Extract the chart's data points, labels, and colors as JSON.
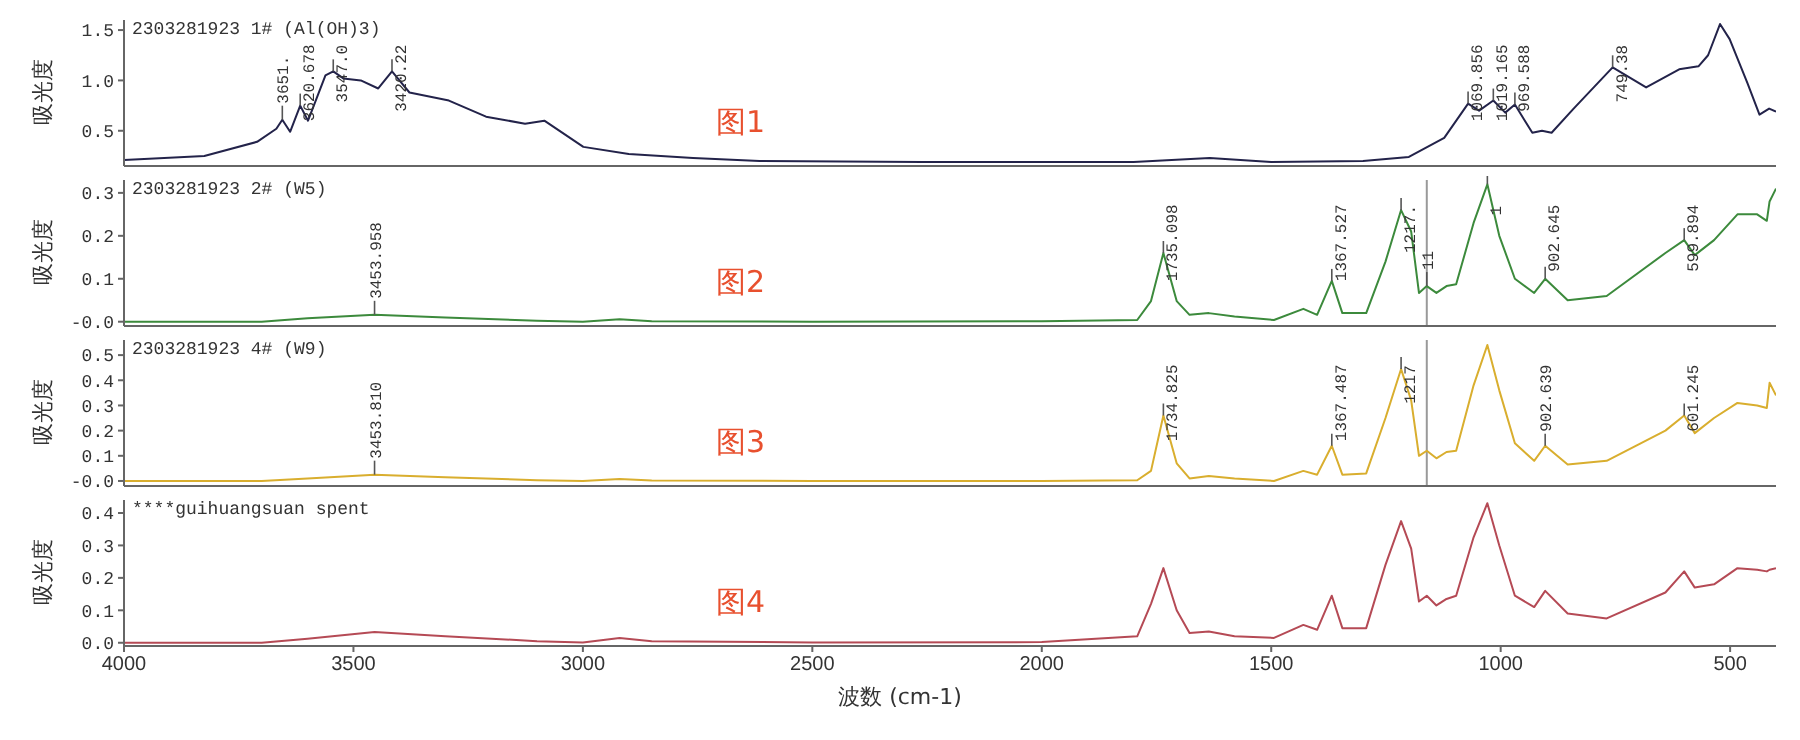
{
  "chart_data": [
    {
      "type": "line",
      "title": "2303281923 1# (Al(OH)3)",
      "ylabel": "吸光度",
      "color": "#23234a",
      "x": [
        4000,
        3825,
        3710,
        3668,
        3655,
        3638,
        3616,
        3599,
        3561,
        3544,
        3522,
        3484,
        3446,
        3416,
        3378,
        3292,
        3211,
        3126,
        3084,
        2999,
        2900,
        2760,
        2615,
        2261,
        2000,
        1800,
        1634,
        1500,
        1300,
        1200,
        1123,
        1071,
        1047,
        1016,
        990,
        969,
        931,
        910,
        889,
        841,
        756,
        683,
        611,
        569,
        548,
        522,
        501,
        462,
        436,
        415,
        400
      ],
      "values": [
        0.21,
        0.25,
        0.39,
        0.52,
        0.61,
        0.49,
        0.75,
        0.6,
        1.05,
        1.09,
        1.02,
        1.0,
        0.92,
        1.09,
        0.88,
        0.8,
        0.64,
        0.57,
        0.6,
        0.34,
        0.27,
        0.23,
        0.2,
        0.19,
        0.19,
        0.19,
        0.23,
        0.19,
        0.2,
        0.24,
        0.43,
        0.77,
        0.7,
        0.8,
        0.68,
        0.76,
        0.48,
        0.5,
        0.48,
        0.72,
        1.13,
        0.93,
        1.11,
        1.14,
        1.25,
        1.56,
        1.41,
        0.97,
        0.66,
        0.72,
        0.69
      ],
      "xlim": [
        4000,
        400
      ],
      "xticks": [
        4000,
        3500,
        3000,
        2500,
        2000,
        1500,
        1000,
        500
      ],
      "ylim": [
        0.15,
        1.6
      ],
      "yticks": [
        {
          "value": 0.5,
          "label": "0.5"
        },
        {
          "value": 1,
          "label": "1.0"
        },
        {
          "value": 1.5,
          "label": "1.5"
        }
      ],
      "tick_labels": "y",
      "grid": false,
      "legend": false,
      "marker": "none",
      "line_style": "solid",
      "annotations": [
        "图1",
        {
          "text": "3651.",
          "x": 3655,
          "y": 0.61
        },
        {
          "text": "3620.678",
          "x": 3616,
          "y": 0.75
        },
        {
          "text": "3547.0",
          "x": 3544,
          "y": 1.09
        },
        {
          "text": "3420.22",
          "x": 3416,
          "y": 1.09
        },
        {
          "text": "1069.856",
          "x": 1071,
          "y": 0.77
        },
        {
          "text": "1019.165",
          "x": 1016,
          "y": 0.8
        },
        {
          "text": "969.588",
          "x": 969,
          "y": 0.76
        },
        {
          "text": "749.38",
          "x": 756,
          "y": 1.13
        }
      ]
    },
    {
      "type": "line",
      "title": "2303281923 2# (W5)",
      "ylabel": "吸光度",
      "color": "#3c8a3c",
      "x": [
        4000,
        3700,
        3600,
        3454,
        3300,
        3100,
        3000,
        2920,
        2850,
        2500,
        2000,
        1792,
        1762,
        1735,
        1706,
        1678,
        1636,
        1580,
        1494,
        1430,
        1400,
        1368,
        1345,
        1293,
        1251,
        1217,
        1195,
        1178,
        1161,
        1140,
        1118,
        1097,
        1059,
        1029,
        1003,
        969,
        927,
        903,
        854,
        769,
        641,
        600,
        577,
        535,
        484,
        441,
        420,
        414,
        400
      ],
      "values": [
        0,
        0,
        0.008,
        0.016,
        0.01,
        0.002,
        0,
        0.006,
        0.001,
        0,
        0.001,
        0.004,
        0.048,
        0.16,
        0.048,
        0.016,
        0.02,
        0.012,
        0.004,
        0.03,
        0.016,
        0.095,
        0.02,
        0.02,
        0.14,
        0.26,
        0.21,
        0.067,
        0.083,
        0.067,
        0.083,
        0.087,
        0.23,
        0.32,
        0.2,
        0.1,
        0.067,
        0.1,
        0.05,
        0.06,
        0.16,
        0.19,
        0.155,
        0.19,
        0.25,
        0.25,
        0.235,
        0.28,
        0.31
      ],
      "xlim": [
        4000,
        400
      ],
      "xticks": [
        4000,
        3500,
        3000,
        2500,
        2000,
        1500,
        1000,
        500
      ],
      "ylim": [
        -0.01,
        0.33
      ],
      "yticks": [
        {
          "value": 0,
          "label": "-0.0"
        },
        0.1,
        0.2,
        0.3
      ],
      "tick_labels": "y",
      "grid": false,
      "legend": false,
      "marker": "none",
      "line_style": "solid",
      "ref_lines": [
        {
          "axis": "x",
          "value": 1161,
          "color": "#999999"
        }
      ],
      "annotations": [
        "图2",
        {
          "text": "3453.958",
          "x": 3454,
          "y": 0.016
        },
        {
          "text": "1735.098",
          "x": 1735,
          "y": 0.16
        },
        {
          "text": "1367.527",
          "x": 1368,
          "y": 0.095
        },
        {
          "text": "1217.",
          "x": 1217,
          "y": 0.26
        },
        {
          "text": "11",
          "x": 1161,
          "y": 0.083
        },
        {
          "text": "1",
          "x": 1029,
          "y": 0.32
        },
        {
          "text": "902.645",
          "x": 903,
          "y": 0.1
        },
        {
          "text": "599.894",
          "x": 600,
          "y": 0.19
        }
      ]
    },
    {
      "type": "line",
      "title": "2303281923 4# (W9)",
      "ylabel": "吸光度",
      "color": "#d9ae2e",
      "x": [
        4000,
        3700,
        3600,
        3454,
        3300,
        3100,
        3000,
        2920,
        2850,
        2500,
        2000,
        1792,
        1762,
        1735,
        1706,
        1678,
        1636,
        1580,
        1494,
        1430,
        1400,
        1368,
        1345,
        1293,
        1251,
        1217,
        1195,
        1178,
        1161,
        1140,
        1118,
        1097,
        1059,
        1029,
        1003,
        969,
        927,
        903,
        854,
        769,
        641,
        600,
        577,
        535,
        484,
        441,
        420,
        414,
        400
      ],
      "values": [
        0,
        0,
        0.01,
        0.025,
        0.015,
        0.003,
        0,
        0.008,
        0.002,
        0,
        0,
        0.003,
        0.04,
        0.26,
        0.07,
        0.01,
        0.02,
        0.01,
        0,
        0.04,
        0.025,
        0.14,
        0.025,
        0.03,
        0.25,
        0.445,
        0.32,
        0.1,
        0.12,
        0.09,
        0.115,
        0.12,
        0.38,
        0.54,
        0.36,
        0.15,
        0.08,
        0.14,
        0.065,
        0.08,
        0.2,
        0.26,
        0.19,
        0.25,
        0.31,
        0.3,
        0.29,
        0.39,
        0.34
      ],
      "xlim": [
        4000,
        400
      ],
      "xticks": [
        4000,
        3500,
        3000,
        2500,
        2000,
        1500,
        1000,
        500
      ],
      "ylim": [
        -0.02,
        0.56
      ],
      "yticks": [
        {
          "value": 0,
          "label": "-0.0"
        },
        0.1,
        0.2,
        0.3,
        0.4,
        0.5
      ],
      "tick_labels": "y",
      "grid": false,
      "legend": false,
      "marker": "none",
      "line_style": "solid",
      "ref_lines": [
        {
          "axis": "x",
          "value": 1161,
          "color": "#999999"
        }
      ],
      "annotations": [
        "图3",
        {
          "text": "3453.810",
          "x": 3454,
          "y": 0.025
        },
        {
          "text": "1734.825",
          "x": 1735,
          "y": 0.26
        },
        {
          "text": "1367.487",
          "x": 1368,
          "y": 0.14
        },
        {
          "text": "1217",
          "x": 1217,
          "y": 0.445
        },
        {
          "text": "902.639",
          "x": 903,
          "y": 0.14
        },
        {
          "text": "601.245",
          "x": 600,
          "y": 0.26
        }
      ]
    },
    {
      "type": "line",
      "title": "****guihuangsuan spent",
      "ylabel": "吸光度",
      "xlabel": "波数 (cm-1)",
      "color": "#b54a55",
      "x": [
        4000,
        3700,
        3600,
        3454,
        3300,
        3100,
        3000,
        2920,
        2850,
        2500,
        2000,
        1792,
        1762,
        1735,
        1706,
        1678,
        1636,
        1580,
        1494,
        1430,
        1400,
        1368,
        1345,
        1293,
        1251,
        1217,
        1195,
        1178,
        1161,
        1140,
        1118,
        1097,
        1059,
        1029,
        1003,
        969,
        927,
        903,
        854,
        769,
        641,
        600,
        577,
        535,
        484,
        441,
        420,
        414,
        400
      ],
      "values": [
        0,
        0,
        0.012,
        0.033,
        0.02,
        0.005,
        0.001,
        0.015,
        0.005,
        0.001,
        0.002,
        0.02,
        0.12,
        0.23,
        0.1,
        0.03,
        0.035,
        0.02,
        0.015,
        0.055,
        0.04,
        0.145,
        0.045,
        0.045,
        0.24,
        0.375,
        0.29,
        0.127,
        0.145,
        0.115,
        0.135,
        0.145,
        0.325,
        0.43,
        0.3,
        0.145,
        0.11,
        0.16,
        0.09,
        0.075,
        0.155,
        0.22,
        0.17,
        0.18,
        0.23,
        0.225,
        0.22,
        0.225,
        0.23
      ],
      "xlim": [
        4000,
        400
      ],
      "xticks": [
        4000,
        3500,
        3000,
        2500,
        2000,
        1500,
        1000,
        500
      ],
      "ylim": [
        -0.01,
        0.44
      ],
      "yticks": [
        {
          "value": 0,
          "label": "0.0"
        },
        0.1,
        0.2,
        0.3,
        0.4
      ],
      "grid": false,
      "legend": false,
      "marker": "none",
      "line_style": "solid",
      "annotations": [
        "图4"
      ]
    }
  ]
}
